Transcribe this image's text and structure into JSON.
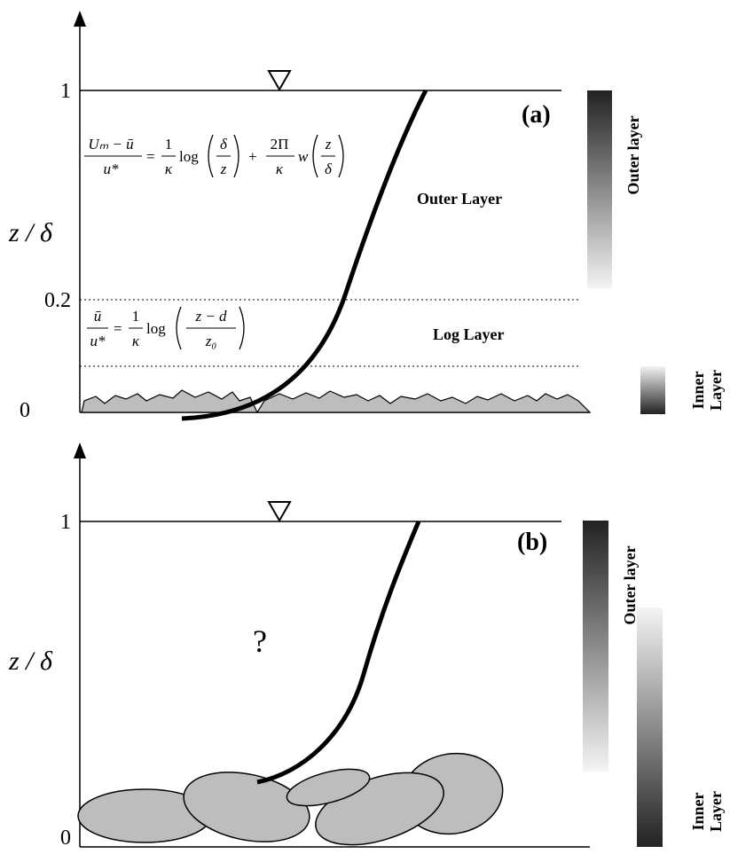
{
  "panel_a": {
    "axis_label": "z / δ",
    "tick_top": "1",
    "tick_mid": "0.2",
    "tick_bottom": "0",
    "panel_label": "(a)",
    "equation_outer": {
      "lhs_num": "Uₘ − ū",
      "lhs_den": "u*",
      "eq": "=",
      "f1_num": "1",
      "f1_den": "κ",
      "log": "log",
      "a_num": "δ",
      "a_den": "z",
      "plus": "+",
      "f2_num": "2Π",
      "f2_den": "κ",
      "w": "w",
      "b_num": "z",
      "b_den": "δ"
    },
    "equation_log": {
      "lhs_num": "ū",
      "lhs_den": "u*",
      "eq": "=",
      "f_num": "1",
      "f_den": "κ",
      "log": "log",
      "a_num": "z − d",
      "a_den": "z₀"
    },
    "outer_region": "Outer Layer",
    "log_region": "Log Layer",
    "outer_bar": "Outer layer",
    "inner_bar": [
      "Inner",
      "Layer"
    ]
  },
  "panel_b": {
    "axis_label": "z / δ",
    "tick_top": "1",
    "tick_bottom": "0",
    "panel_label": "(b)",
    "unknown": "?",
    "outer_bar": "Outer layer",
    "inner_bar": [
      "Inner",
      "Layer"
    ]
  }
}
